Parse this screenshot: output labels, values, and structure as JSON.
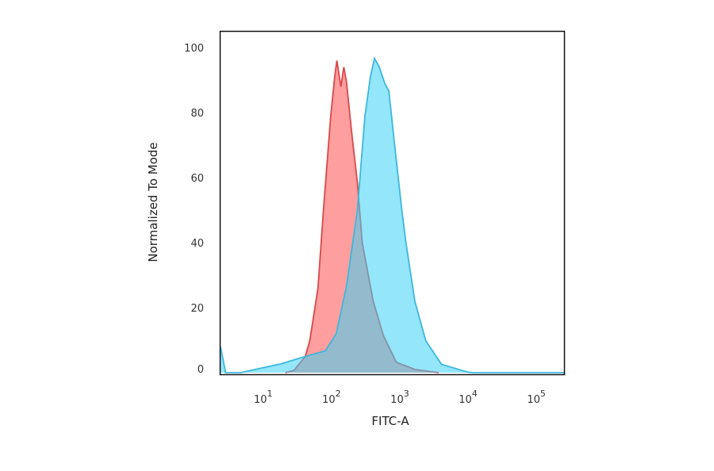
{
  "chart_data": {
    "type": "area",
    "title": "",
    "xlabel": "FITC-A",
    "ylabel": "Normalized To Mode",
    "xscale": "log",
    "xlim": [
      2,
      216000
    ],
    "ylim": [
      0,
      100
    ],
    "xticks": [
      {
        "base": "10",
        "exp": "1"
      },
      {
        "base": "10",
        "exp": "2"
      },
      {
        "base": "10",
        "exp": "3"
      },
      {
        "base": "10",
        "exp": "4"
      },
      {
        "base": "10",
        "exp": "5"
      }
    ],
    "yticks": [
      "0",
      "20",
      "40",
      "60",
      "80",
      "100"
    ],
    "grid": false,
    "series": [
      {
        "color": "#d9484a",
        "fill": "#ff9e9e",
        "x": [
          18,
          24,
          35,
          41,
          54,
          65,
          83,
          95,
          102,
          117,
          129,
          141,
          170,
          204,
          240,
          347,
          490,
          759,
          1413,
          3162
        ],
        "y": [
          0,
          0.7,
          4.9,
          9.8,
          26,
          50,
          79,
          91,
          96,
          88,
          94,
          89.5,
          73,
          58.5,
          40,
          22,
          11.4,
          3.2,
          1,
          0
        ]
      },
      {
        "color": "#3cb8dc",
        "fill": "#3cd2f5",
        "x": [
          2.0,
          2.4,
          4,
          8.3,
          15.5,
          31.6,
          69,
          100,
          141,
          204,
          263,
          316,
          363,
          427,
          513,
          589,
          708,
          912,
          1047,
          1413,
          2042,
          3467,
          8318,
          10000,
          216000
        ],
        "y": [
          8,
          0,
          0,
          1.5,
          2.7,
          4.7,
          6.7,
          12,
          26.5,
          50,
          79,
          91,
          96.7,
          94,
          89,
          86.6,
          71,
          50,
          40,
          22,
          9.8,
          2.6,
          0.2,
          0,
          0
        ]
      }
    ]
  }
}
